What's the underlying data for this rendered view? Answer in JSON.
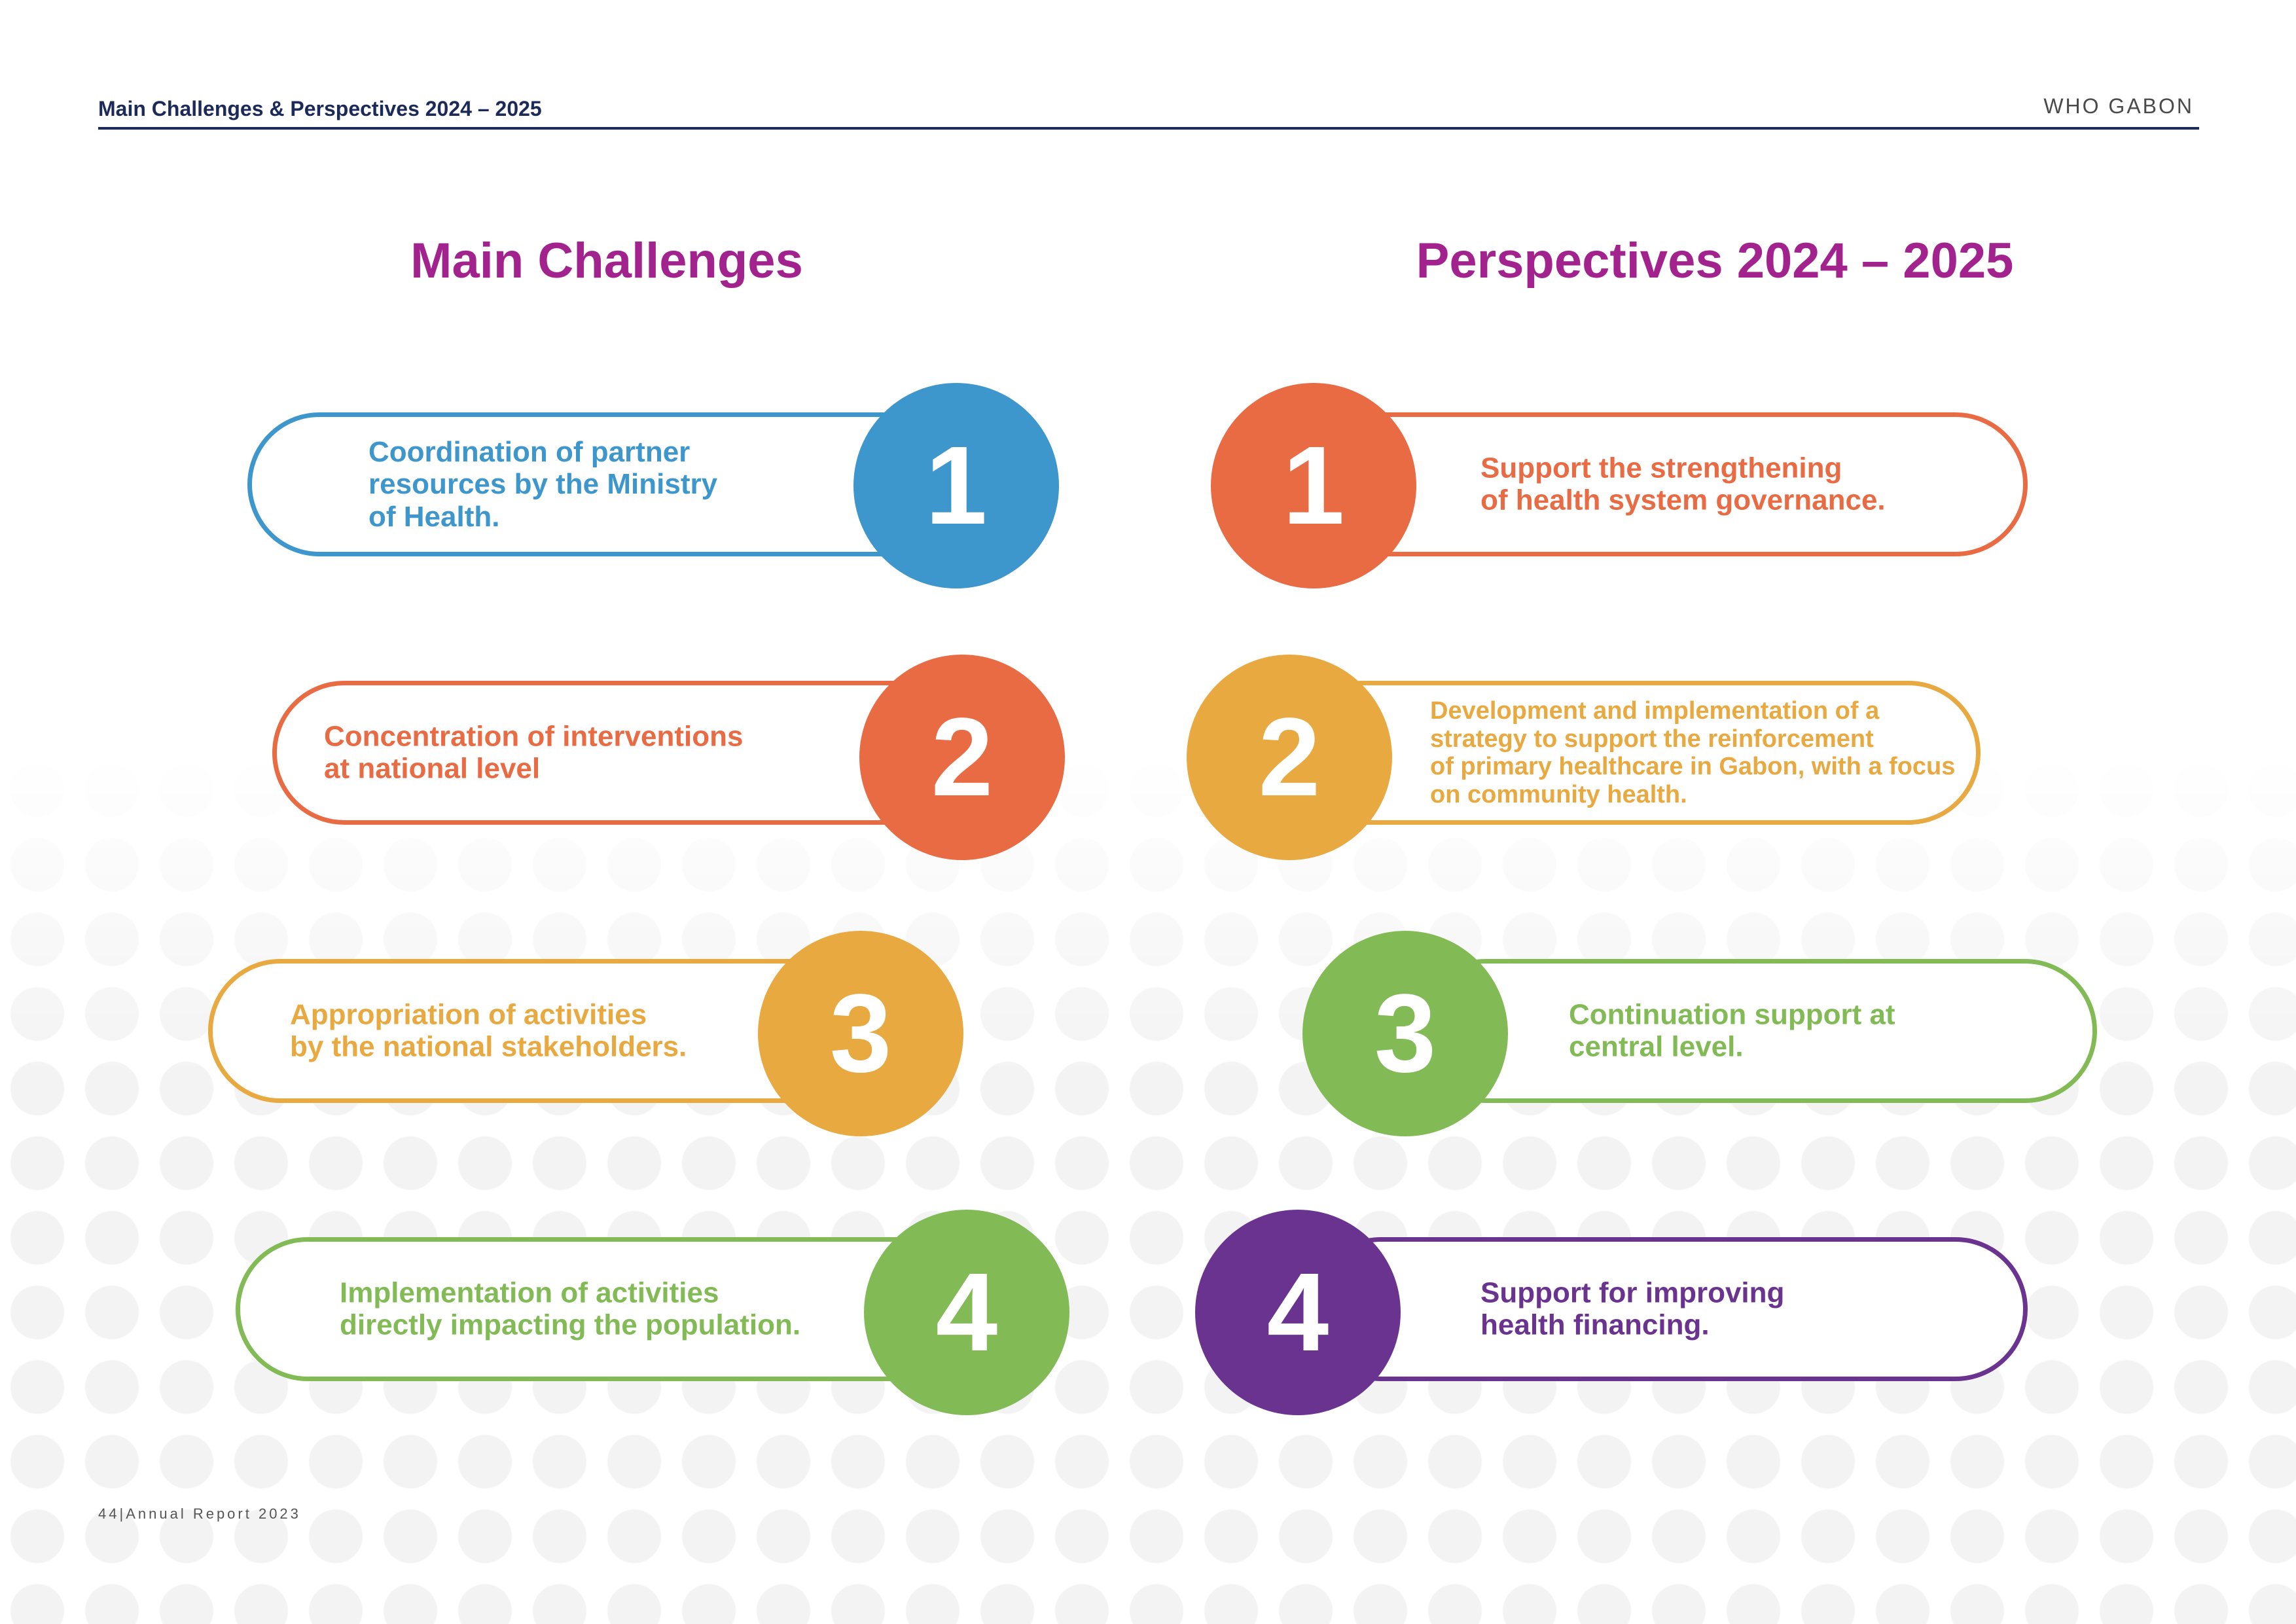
{
  "header": {
    "section_title": "Main Challenges & Perspectives 2024 – 2025",
    "organization": "WHO GABON"
  },
  "columns": {
    "challenges_title": "Main Challenges",
    "perspectives_title": "Perspectives 2024 – 2025"
  },
  "challenges": [
    {
      "number": "1",
      "text": "Coordination of partner\nresources by the Ministry\nof Health.",
      "color": "#3d97cc"
    },
    {
      "number": "2",
      "text": "Concentration of interventions\nat national level",
      "color": "#e96b44"
    },
    {
      "number": "3",
      "text": "Appropriation of activities\nby the national stakeholders.",
      "color": "#e8a940"
    },
    {
      "number": "4",
      "text": "Implementation of activities\ndirectly impacting the population.",
      "color": "#82bb55"
    }
  ],
  "perspectives": [
    {
      "number": "1",
      "text": "Support the strengthening\nof health system governance.",
      "color": "#e96b44"
    },
    {
      "number": "2",
      "text": "Development and implementation of a\nstrategy to support the reinforcement\n of primary healthcare in Gabon, with a focus\non community health.",
      "color": "#e8a940"
    },
    {
      "number": "3",
      "text": "Continuation support at\ncentral level.",
      "color": "#82bb55"
    },
    {
      "number": "4",
      "text": "Support for improving\nhealth financing.",
      "color": "#6a338f"
    }
  ],
  "footer": {
    "page_number": "44",
    "separator": "|",
    "report_label": "Annual Report 2023"
  }
}
